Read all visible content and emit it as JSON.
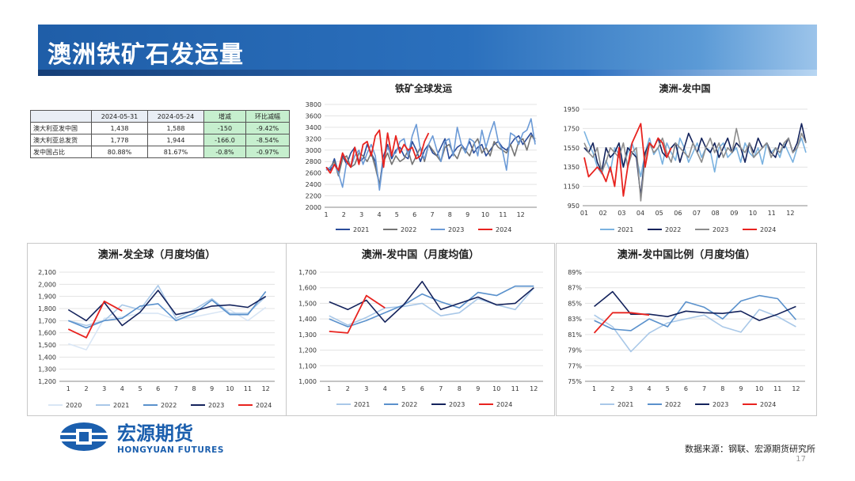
{
  "header": {
    "title": "澳洲铁矿石发运量"
  },
  "table": {
    "headers": [
      "",
      "2024-05-31",
      "2024-05-24",
      "增减",
      "环比减幅"
    ],
    "rows": [
      [
        "澳大利亚发中国",
        "1,438",
        "1,588",
        "-150",
        "-9.42%"
      ],
      [
        "澳大利亚总发货",
        "1,778",
        "1,944",
        "-166.0",
        "-8.54%"
      ],
      [
        "发中国占比",
        "80.88%",
        "81.67%",
        "-0.8%",
        "-0.97%"
      ]
    ]
  },
  "colors": {
    "2020": "#d9e6f5",
    "2021": "#a9c8e8",
    "2022": "#5a91cc",
    "2023": "#14235c",
    "2024": "#e8231f",
    "weekly_2021": "#2a4c9a",
    "weekly_2022": "#757575",
    "weekly_2023": "#6b9ad6",
    "weekly_2024": "#e8231f",
    "cn_2021": "#7ab2e0",
    "cn_2022": "#14235c",
    "cn_2023": "#8c8c8c",
    "cn_2024": "#e8231f"
  },
  "chart_data": [
    {
      "id": "global-weekly",
      "type": "line",
      "title": "铁矿全球发运",
      "ylim": [
        2000,
        3800
      ],
      "yticks": [
        2000,
        2200,
        2400,
        2600,
        2800,
        3000,
        3200,
        3400,
        3600,
        3800
      ],
      "xticks": [
        "1",
        "2",
        "3",
        "4",
        "5",
        "6",
        "7",
        "8",
        "9",
        "10",
        "11",
        "12"
      ],
      "legend": [
        "2021",
        "2022",
        "2023",
        "2024"
      ],
      "series": [
        {
          "name": "2021",
          "values": [
            2700,
            2650,
            2850,
            2600,
            2900,
            2750,
            2950,
            3050,
            2800,
            2850,
            3100,
            2950,
            2800,
            2380,
            2900,
            3100,
            2850,
            3000,
            3050,
            2900,
            2850,
            3150,
            3000,
            2800,
            3000,
            3100,
            2950,
            2900,
            3050,
            3200,
            2850,
            2950,
            3050,
            3100,
            3000,
            3150,
            2950,
            3050,
            3100,
            2900,
            3000,
            3100,
            3150,
            3050,
            3000,
            3100,
            3200,
            3250,
            3100,
            3200,
            3300,
            3150
          ]
        },
        {
          "name": "2022",
          "values": [
            2650,
            2700,
            2800,
            2550,
            2850,
            2900,
            2700,
            2750,
            2950,
            2900,
            2800,
            2950,
            2700,
            2400,
            2800,
            2950,
            2750,
            2900,
            2800,
            2850,
            3000,
            2750,
            2900,
            3050,
            2800,
            3100,
            3000,
            2900,
            2800,
            3050,
            3100,
            2950,
            2850,
            3050,
            3000,
            2900,
            3100,
            3200,
            2950,
            3050,
            2900,
            3150,
            3050,
            3000,
            2950,
            3100,
            2900,
            3150,
            3200,
            3000,
            3250,
            3200
          ]
        },
        {
          "name": "2023",
          "values": [
            2650,
            2700,
            2750,
            2600,
            2350,
            2800,
            2700,
            2900,
            3000,
            2750,
            2950,
            3100,
            2900,
            2300,
            2850,
            3050,
            2900,
            2950,
            3150,
            3200,
            2900,
            3250,
            3450,
            3000,
            2850,
            3100,
            3250,
            3000,
            2800,
            3150,
            3200,
            2900,
            3400,
            3100,
            2950,
            3200,
            3150,
            2900,
            3350,
            3050,
            3300,
            3500,
            3150,
            3000,
            2650,
            3300,
            3250,
            3100,
            3300,
            3350,
            3550,
            3100
          ]
        },
        {
          "name": "2024",
          "values": [
            2700,
            2600,
            2750,
            2650,
            2950,
            2800,
            2700,
            3050,
            2750,
            3100,
            3150,
            2900,
            3250,
            3350,
            2700,
            3300,
            2900,
            3250,
            2950,
            3100,
            3000,
            3050,
            2850,
            2900,
            3150,
            3300
          ]
        }
      ]
    },
    {
      "id": "china-weekly",
      "type": "line",
      "title": "澳洲-发中国",
      "ylim": [
        950,
        1950
      ],
      "yticks": [
        950,
        1150,
        1350,
        1550,
        1750,
        1950
      ],
      "xticks": [
        "01",
        "02",
        "03",
        "04",
        "05",
        "06",
        "07",
        "08",
        "09",
        "10",
        "11",
        "12"
      ],
      "legend": [
        "2021",
        "2022",
        "2023",
        "2024"
      ],
      "series": [
        {
          "name": "2021",
          "values": [
            1720,
            1600,
            1500,
            1350,
            1280,
            1420,
            1300,
            1550,
            1480,
            1350,
            1500,
            1600,
            1450,
            1250,
            1500,
            1650,
            1480,
            1550,
            1380,
            1600,
            1500,
            1420,
            1650,
            1550,
            1400,
            1500,
            1600,
            1450,
            1550,
            1520,
            1300,
            1550,
            1600,
            1450,
            1500,
            1550,
            1400,
            1600,
            1500,
            1450,
            1550,
            1380,
            1600,
            1500,
            1550,
            1450,
            1600,
            1500,
            1400,
            1550,
            1650,
            1500
          ]
        },
        {
          "name": "2022",
          "values": [
            1550,
            1500,
            1600,
            1400,
            1300,
            1550,
            1450,
            1500,
            1600,
            1350,
            1550,
            1500,
            1450,
            1050,
            1500,
            1600,
            1550,
            1650,
            1500,
            1450,
            1550,
            1600,
            1400,
            1550,
            1700,
            1600,
            1500,
            1650,
            1550,
            1500,
            1600,
            1450,
            1550,
            1650,
            1500,
            1600,
            1550,
            1400,
            1600,
            1500,
            1650,
            1550,
            1600,
            1500,
            1450,
            1600,
            1550,
            1650,
            1500,
            1600,
            1800,
            1600
          ]
        },
        {
          "name": "2023",
          "values": [
            1600,
            1500,
            1450,
            1550,
            1300,
            1400,
            1550,
            1500,
            1450,
            1600,
            1350,
            1500,
            1550,
            1000,
            1450,
            1600,
            1500,
            1550,
            1650,
            1500,
            1400,
            1600,
            1550,
            1500,
            1450,
            1600,
            1500,
            1400,
            1550,
            1650,
            1500,
            1600,
            1450,
            1550,
            1500,
            1750,
            1550,
            1500,
            1600,
            1450,
            1500,
            1550,
            1600,
            1450,
            1550,
            1500,
            1600,
            1650,
            1500,
            1550,
            1700,
            1600
          ]
        },
        {
          "name": "2024",
          "values": [
            1450,
            1250,
            1300,
            1350,
            1300,
            1200,
            1350,
            1150,
            1550,
            1050,
            1350,
            1600,
            1700,
            1800,
            1350,
            1600,
            1550,
            1650,
            1600,
            1450,
            1550
          ]
        }
      ]
    },
    {
      "id": "global-monthly",
      "type": "line",
      "title": "澳洲-发全球（月度均值）",
      "ylim": [
        1200,
        2100
      ],
      "yticks": [
        "1,200",
        "1,300",
        "1,400",
        "1,500",
        "1,600",
        "1,700",
        "1,800",
        "1,900",
        "2,000",
        "2,100"
      ],
      "yvals": [
        1200,
        1300,
        1400,
        1500,
        1600,
        1700,
        1800,
        1900,
        2000,
        2100
      ],
      "xticks": [
        "1",
        "2",
        "3",
        "4",
        "5",
        "6",
        "7",
        "8",
        "9",
        "10",
        "11",
        "12"
      ],
      "legend": [
        "2020",
        "2021",
        "2022",
        "2023",
        "2024"
      ],
      "series": [
        {
          "name": "2020",
          "values": [
            1510,
            1460,
            1720,
            1730,
            1760,
            1760,
            1710,
            1730,
            1760,
            1790,
            1700,
            1810
          ]
        },
        {
          "name": "2021",
          "values": [
            1700,
            1660,
            1700,
            1830,
            1790,
            1990,
            1720,
            1790,
            1880,
            1760,
            1760,
            1900
          ]
        },
        {
          "name": "2022",
          "values": [
            1700,
            1640,
            1700,
            1720,
            1820,
            1840,
            1700,
            1760,
            1870,
            1750,
            1750,
            1940
          ]
        },
        {
          "name": "2023",
          "values": [
            1790,
            1700,
            1850,
            1660,
            1770,
            1950,
            1750,
            1780,
            1820,
            1830,
            1810,
            1900
          ]
        },
        {
          "name": "2024",
          "values": [
            1630,
            1560,
            1860,
            1780
          ]
        }
      ]
    },
    {
      "id": "china-monthly",
      "type": "line",
      "title": "澳洲-发中国（月度均值）",
      "ylim": [
        1000,
        1700
      ],
      "yticks": [
        "1,000",
        "1,100",
        "1,200",
        "1,300",
        "1,400",
        "1,500",
        "1,600",
        "1,700"
      ],
      "yvals": [
        1000,
        1100,
        1200,
        1300,
        1400,
        1500,
        1600,
        1700
      ],
      "xticks": [
        "1",
        "2",
        "3",
        "4",
        "5",
        "6",
        "7",
        "8",
        "9",
        "10",
        "11",
        "12"
      ],
      "legend": [
        "2021",
        "2022",
        "2023",
        "2024"
      ],
      "series": [
        {
          "name": "2021",
          "values": [
            1420,
            1360,
            1410,
            1470,
            1480,
            1500,
            1420,
            1440,
            1530,
            1490,
            1460,
            1600
          ]
        },
        {
          "name": "2022",
          "values": [
            1400,
            1350,
            1390,
            1440,
            1490,
            1560,
            1510,
            1470,
            1570,
            1550,
            1610,
            1610
          ]
        },
        {
          "name": "2023",
          "values": [
            1510,
            1460,
            1520,
            1380,
            1490,
            1640,
            1460,
            1500,
            1540,
            1490,
            1500,
            1600
          ]
        },
        {
          "name": "2024",
          "values": [
            1320,
            1310,
            1550,
            1470
          ]
        }
      ]
    },
    {
      "id": "china-ratio-monthly",
      "type": "line",
      "title": "澳洲-发中国比例（月度均值）",
      "ylim": [
        75,
        89
      ],
      "yticks": [
        "75%",
        "77%",
        "79%",
        "81%",
        "83%",
        "85%",
        "87%",
        "89%"
      ],
      "yvals": [
        75,
        77,
        79,
        81,
        83,
        85,
        87,
        89
      ],
      "xticks": [
        "1",
        "2",
        "3",
        "4",
        "5",
        "6",
        "7",
        "8",
        "9",
        "10",
        "11",
        "12"
      ],
      "legend": [
        "2021",
        "2022",
        "2023",
        "2024"
      ],
      "series": [
        {
          "name": "2021",
          "values": [
            83.5,
            82.0,
            78.8,
            81.2,
            82.5,
            83.0,
            83.5,
            82.0,
            81.3,
            84.2,
            83.3,
            82.0
          ]
        },
        {
          "name": "2022",
          "values": [
            82.8,
            81.7,
            81.5,
            83.0,
            82.0,
            85.2,
            84.5,
            83.0,
            85.3,
            86.0,
            85.6,
            82.9
          ]
        },
        {
          "name": "2023",
          "values": [
            84.6,
            86.5,
            83.6,
            83.6,
            83.3,
            84.0,
            83.8,
            83.7,
            84.0,
            82.8,
            83.6,
            84.6
          ]
        },
        {
          "name": "2024",
          "values": [
            81.2,
            83.8,
            83.8,
            83.5
          ]
        }
      ]
    }
  ],
  "footer": {
    "source": "数据来源：钢联、宏源期货研究所",
    "page": "17",
    "logo_cn": "宏源期货",
    "logo_en": "HONGYUAN FUTURES"
  }
}
